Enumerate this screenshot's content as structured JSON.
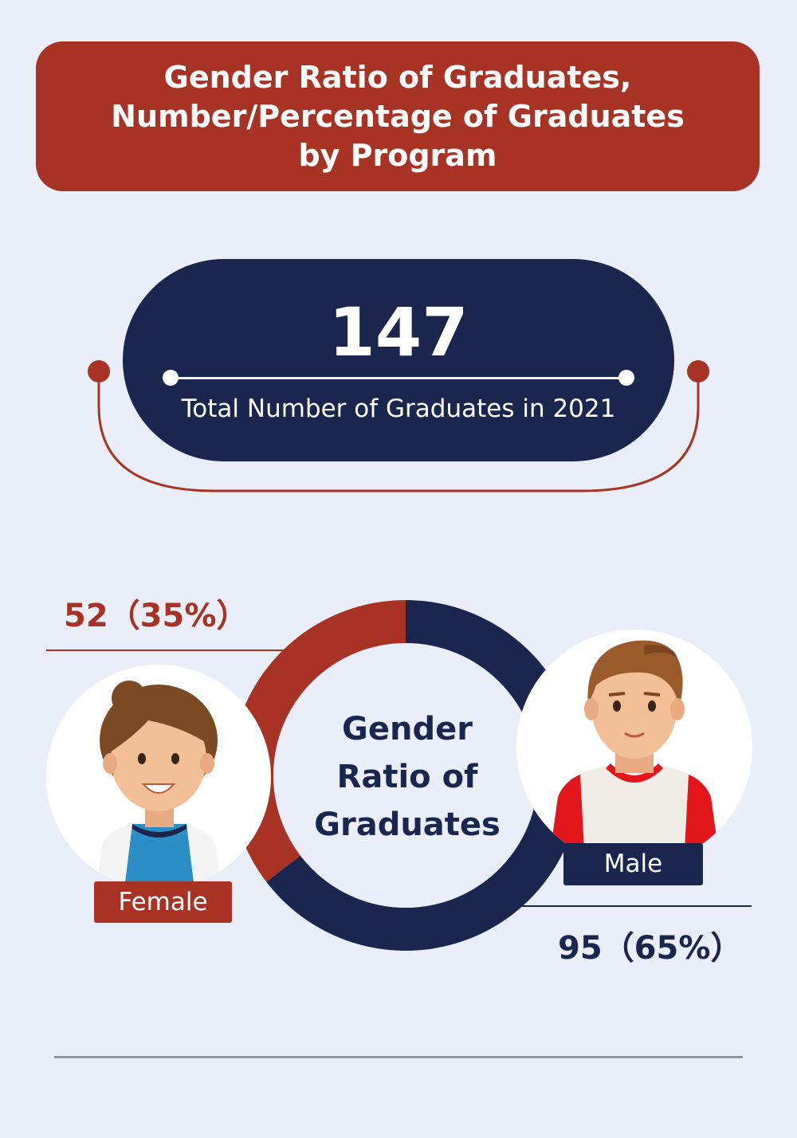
{
  "header": {
    "title_lines": [
      "Gender Ratio of Graduates,",
      "Number/Percentage of Graduates",
      "by Program"
    ]
  },
  "total": {
    "value": "147",
    "caption": "Total Number of Graduates in 2021"
  },
  "colors": {
    "female": "#a83224",
    "male": "#1b264e",
    "background": "#e9eef9"
  },
  "chart_data": {
    "type": "pie",
    "title": "",
    "center_label": [
      "Gender",
      "Ratio of",
      "Graduates"
    ],
    "categories": [
      "Female",
      "Male"
    ],
    "values": [
      52,
      95
    ],
    "percent_labels": [
      "52（35%）",
      "95（65%）"
    ],
    "colors": [
      "#a83224",
      "#1b264e"
    ]
  },
  "legend": {
    "female_label": "Female",
    "male_label": "Male"
  },
  "icons": {
    "female": "female-graduate-avatar",
    "male": "male-graduate-avatar"
  }
}
